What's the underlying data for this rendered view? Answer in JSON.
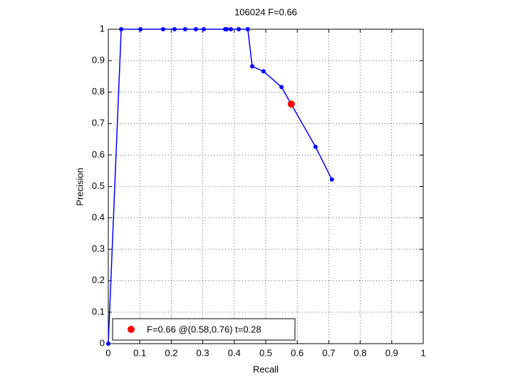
{
  "chart_data": {
    "type": "line",
    "title": "106024 F=0.66",
    "x_label": "Recall",
    "y_label": "Precision",
    "series": [
      {
        "color": "#0000ff",
        "x": [
          0,
          0.041,
          0.102,
          0.174,
          0.21,
          0.244,
          0.278,
          0.303,
          0.371,
          0.376,
          0.389,
          0.414,
          0.443,
          0.457,
          0.493,
          0.55,
          0.658,
          0.71
        ],
        "values": [
          0,
          1,
          1,
          1,
          1,
          1,
          1,
          1,
          1,
          1,
          1,
          1,
          1,
          0.882,
          0.866,
          0.816,
          0.626,
          0.522
        ]
      },
      {
        "name": "F=0.66 @(0.58,0.76) t=0.28",
        "color": "#ff0000",
        "x": [
          0.581
        ],
        "values": [
          0.762
        ]
      }
    ],
    "xlim": [
      0,
      1
    ],
    "ylim": [
      0,
      1
    ],
    "xticks": [
      0,
      0.1,
      0.2,
      0.3,
      0.4,
      0.5,
      0.6,
      0.7,
      0.8,
      0.9,
      1
    ],
    "yticks": [
      0,
      0.1,
      0.2,
      0.3,
      0.4,
      0.5,
      0.6,
      0.7,
      0.8,
      0.9,
      1
    ],
    "grid": true,
    "legend": "lower left"
  }
}
